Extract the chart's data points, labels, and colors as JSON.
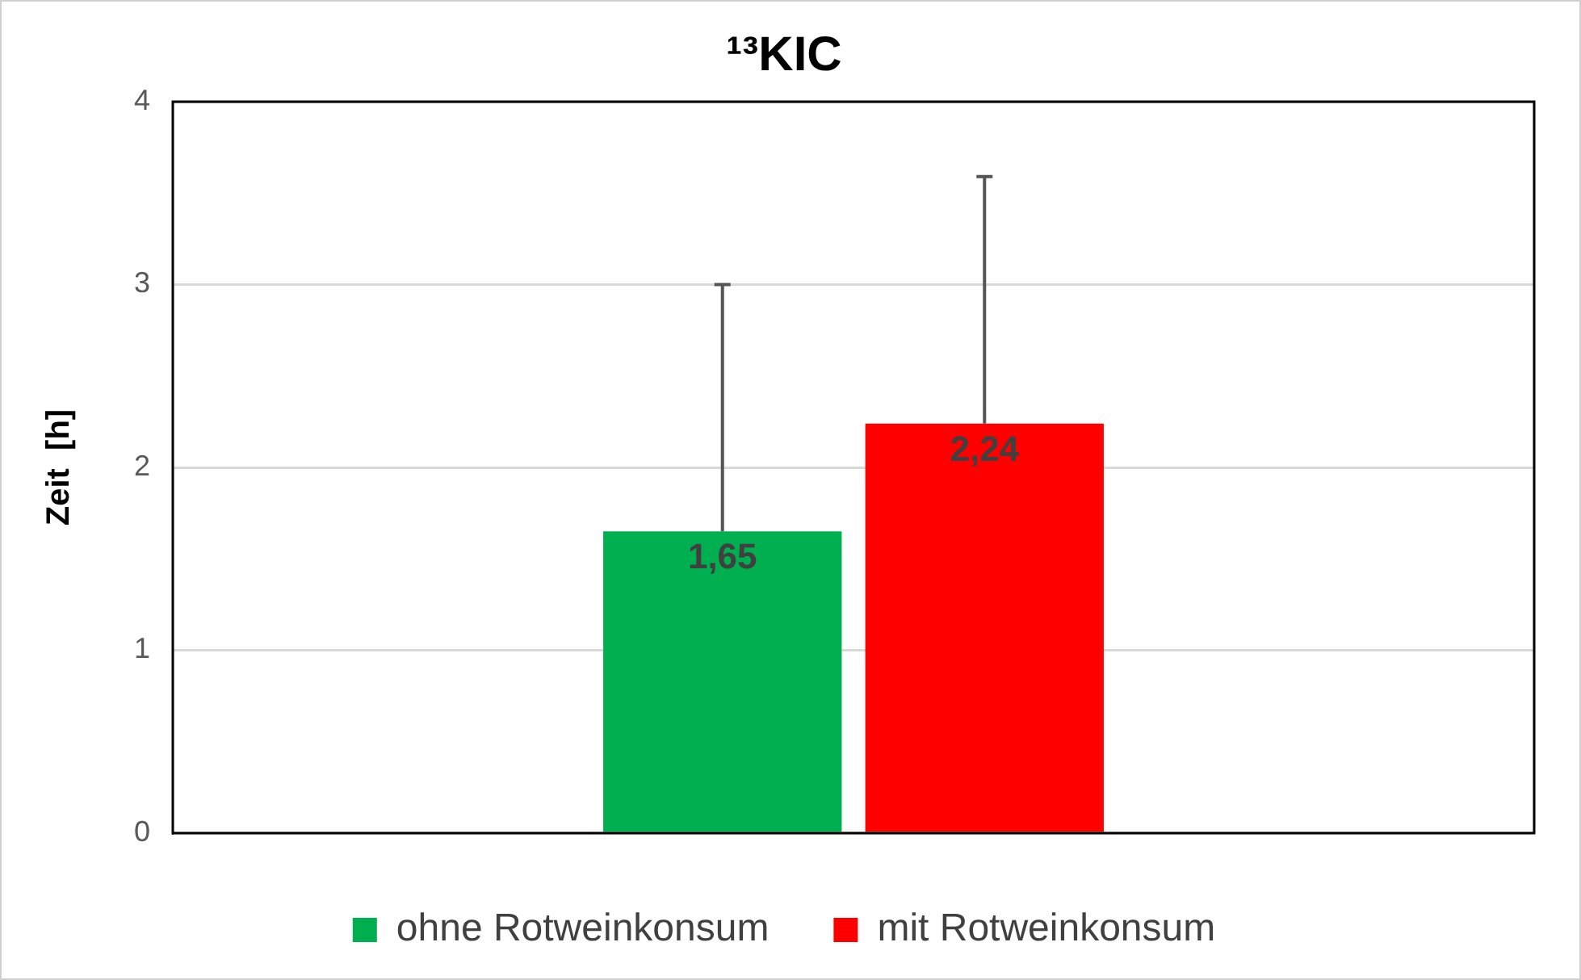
{
  "chart_data": {
    "type": "bar",
    "title": "¹³KIC",
    "ylabel": "Zeit  [h]",
    "categories": [
      null
    ],
    "series": [
      {
        "name": "ohne Rotweinkonsum",
        "color": "#00b050",
        "values": [
          1.65
        ],
        "errors": [
          [
            1.65,
            3.0
          ]
        ],
        "value_labels": [
          "1,65"
        ]
      },
      {
        "name": "mit Rotweinkonsum",
        "color": "#ff0000",
        "values": [
          2.24
        ],
        "errors": [
          [
            2.24,
            3.59
          ]
        ],
        "value_labels": [
          "2,24"
        ]
      }
    ],
    "ylim": [
      0,
      4
    ],
    "yticks": [
      0,
      1,
      2,
      3,
      4
    ],
    "grid": "y",
    "legend": "bottom"
  }
}
